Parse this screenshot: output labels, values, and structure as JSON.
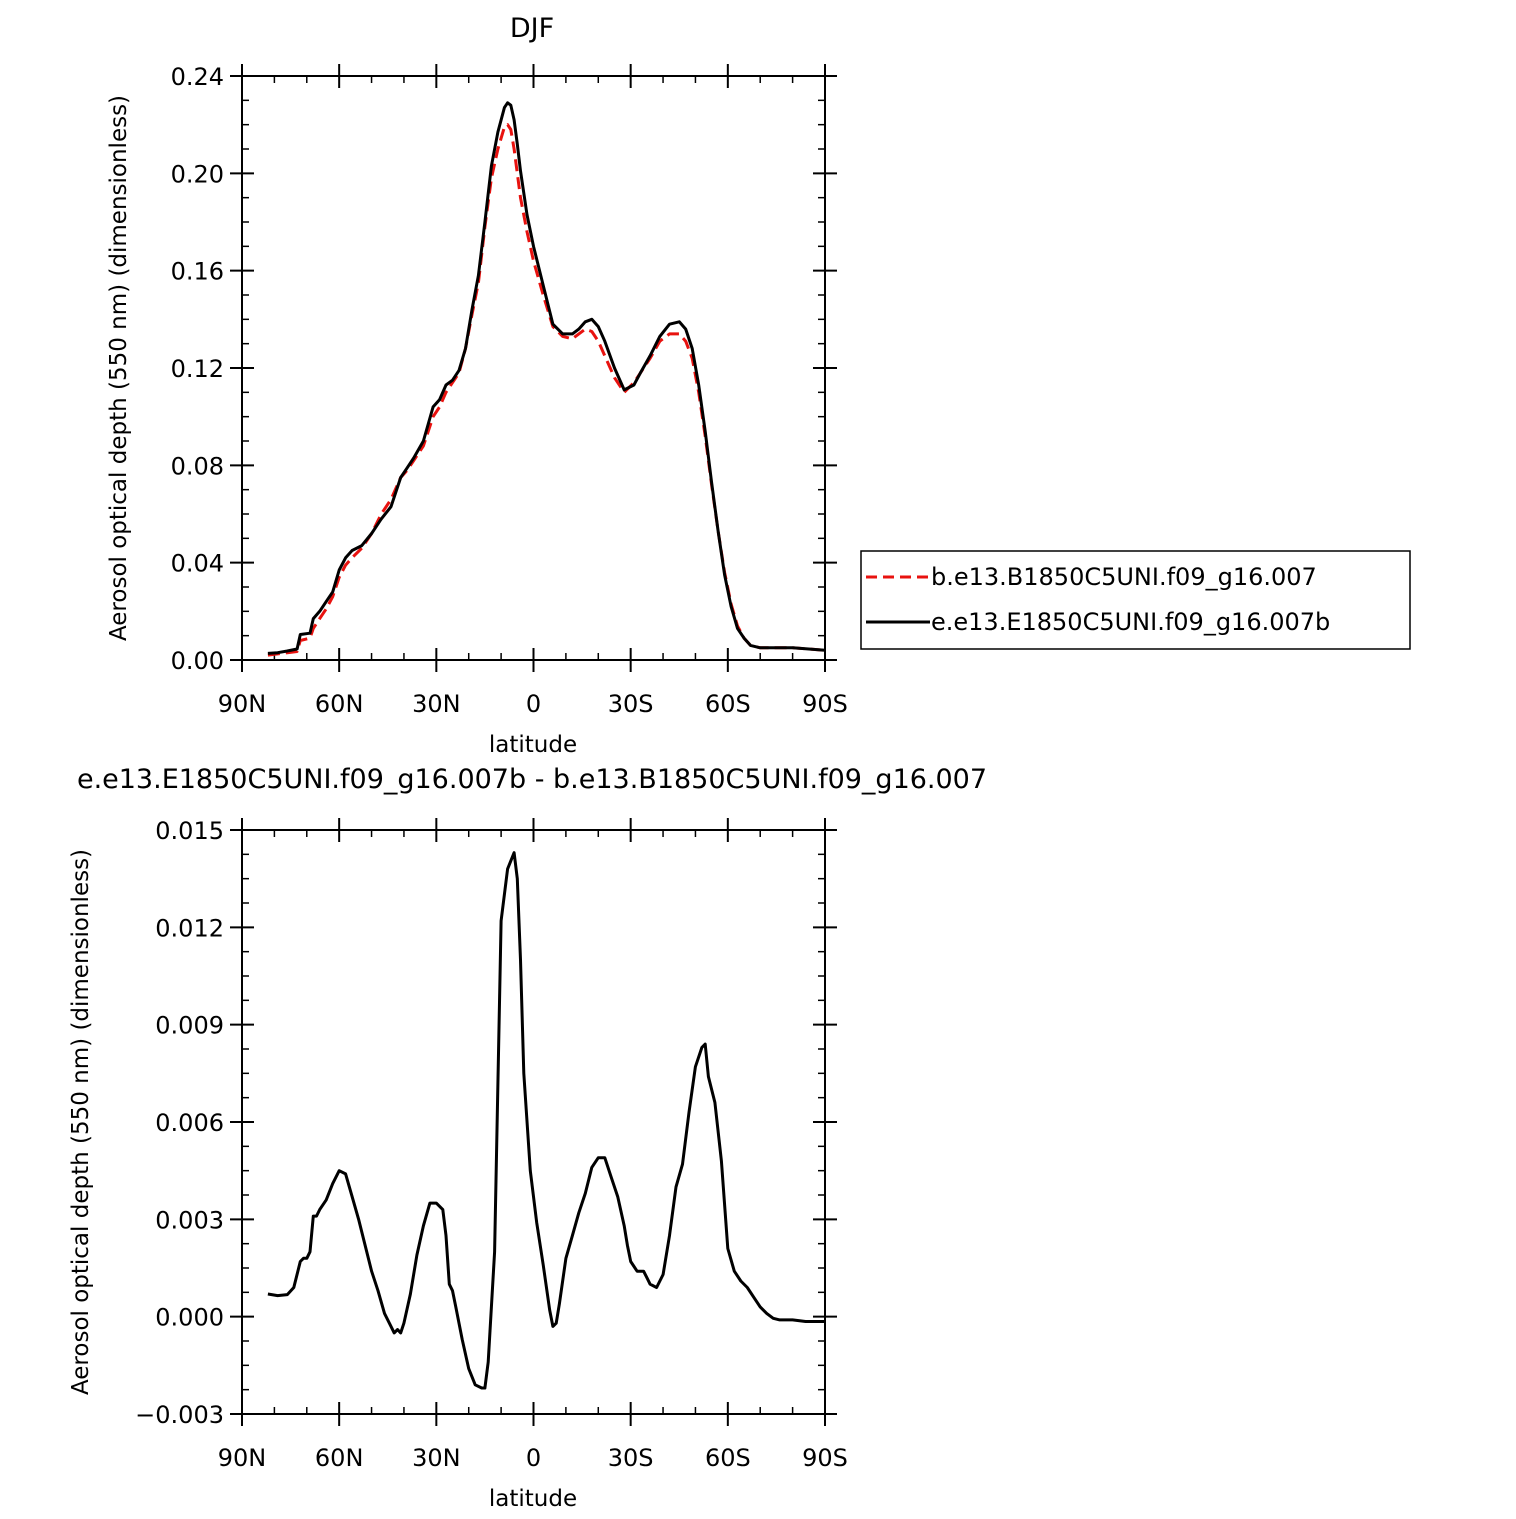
{
  "colors": {
    "series_a": "#e8120f",
    "series_b": "#000000",
    "axes": "#000000",
    "background": "#ffffff"
  },
  "legend": {
    "entries": [
      {
        "label": "b.e13.B1850C5UNI.f09_g16.007",
        "style": "dashed",
        "color": "#e8120f"
      },
      {
        "label": "e.e13.E1850C5UNI.f09_g16.007b",
        "style": "solid",
        "color": "#000000"
      }
    ]
  },
  "chart_data": [
    {
      "type": "line",
      "title": "DJF",
      "xlabel": "latitude",
      "ylabel": "Aerosol optical depth (550 nm) (dimensionless)",
      "xlim": [
        90,
        -90
      ],
      "ylim": [
        0,
        0.24
      ],
      "xticks": [
        90,
        60,
        30,
        0,
        -30,
        -60,
        -90
      ],
      "xtick_labels": [
        "90N",
        "60N",
        "30N",
        "0",
        "30S",
        "60S",
        "90S"
      ],
      "yticks": [
        0,
        0.04,
        0.08,
        0.12,
        0.16,
        0.2,
        0.24
      ],
      "ytick_labels": [
        "0.00",
        "0.04",
        "0.08",
        "0.12",
        "0.16",
        "0.20",
        "0.24"
      ],
      "grid": false,
      "legend_position": "right",
      "series": [
        {
          "name": "b.e13.B1850C5UNI.f09_g16.007",
          "color": "#e8120f",
          "style": "dashed",
          "x": [
            82,
            79,
            76,
            73,
            72,
            69,
            68,
            66,
            64,
            62,
            60,
            58,
            56,
            53,
            50,
            47,
            44,
            41,
            39,
            37,
            34,
            31,
            29,
            27,
            25,
            23,
            21,
            19,
            17,
            15,
            13,
            11,
            9,
            8,
            7,
            6,
            5,
            4,
            2,
            0,
            -3,
            -6,
            -9,
            -12,
            -14,
            -16,
            -18,
            -20,
            -22,
            -25,
            -28,
            -31,
            -33,
            -36,
            -39,
            -42,
            -45,
            -47,
            -49,
            -51,
            -53,
            -55,
            -57,
            -59,
            -61,
            -63,
            -65,
            -67,
            -70,
            -73,
            -76,
            -80,
            -85,
            -90
          ],
          "y": [
            0.002,
            0.0025,
            0.003,
            0.0035,
            0.008,
            0.009,
            0.013,
            0.017,
            0.021,
            0.026,
            0.034,
            0.039,
            0.042,
            0.046,
            0.052,
            0.06,
            0.066,
            0.075,
            0.078,
            0.082,
            0.088,
            0.1,
            0.104,
            0.11,
            0.114,
            0.118,
            0.128,
            0.142,
            0.155,
            0.178,
            0.198,
            0.21,
            0.219,
            0.22,
            0.218,
            0.21,
            0.2,
            0.19,
            0.176,
            0.164,
            0.15,
            0.137,
            0.133,
            0.132,
            0.134,
            0.136,
            0.135,
            0.131,
            0.125,
            0.116,
            0.11,
            0.114,
            0.118,
            0.124,
            0.131,
            0.134,
            0.134,
            0.131,
            0.124,
            0.11,
            0.092,
            0.072,
            0.053,
            0.036,
            0.023,
            0.014,
            0.009,
            0.006,
            0.005,
            0.005,
            0.005,
            0.005,
            0.0045,
            0.004
          ]
        },
        {
          "name": "e.e13.E1850C5UNI.f09_g16.007b",
          "color": "#000000",
          "style": "solid",
          "x": [
            82,
            79,
            76,
            73,
            72,
            69,
            68,
            66,
            64,
            62,
            60,
            58,
            56,
            53,
            50,
            47,
            44,
            41,
            39,
            37,
            34,
            31,
            29,
            27,
            25,
            23,
            21,
            19,
            17,
            15,
            13,
            11,
            9,
            8,
            7,
            6,
            5,
            4,
            2,
            0,
            -3,
            -6,
            -9,
            -12,
            -14,
            -16,
            -18,
            -20,
            -22,
            -25,
            -28,
            -31,
            -33,
            -36,
            -39,
            -42,
            -45,
            -47,
            -49,
            -51,
            -53,
            -55,
            -57,
            -59,
            -61,
            -63,
            -65,
            -67,
            -70,
            -73,
            -76,
            -80,
            -85,
            -90
          ],
          "y": [
            0.0027,
            0.003,
            0.0037,
            0.0045,
            0.0105,
            0.011,
            0.017,
            0.02,
            0.024,
            0.028,
            0.037,
            0.042,
            0.045,
            0.047,
            0.052,
            0.058,
            0.063,
            0.075,
            0.079,
            0.083,
            0.09,
            0.104,
            0.107,
            0.113,
            0.115,
            0.119,
            0.128,
            0.144,
            0.158,
            0.18,
            0.203,
            0.217,
            0.227,
            0.229,
            0.228,
            0.222,
            0.212,
            0.201,
            0.183,
            0.17,
            0.154,
            0.138,
            0.134,
            0.134,
            0.136,
            0.139,
            0.14,
            0.137,
            0.131,
            0.12,
            0.111,
            0.113,
            0.118,
            0.125,
            0.133,
            0.138,
            0.139,
            0.136,
            0.128,
            0.113,
            0.094,
            0.073,
            0.053,
            0.035,
            0.022,
            0.013,
            0.009,
            0.006,
            0.005,
            0.005,
            0.005,
            0.005,
            0.0045,
            0.004
          ]
        }
      ]
    },
    {
      "type": "line",
      "title": "e.e13.E1850C5UNI.f09_g16.007b - b.e13.B1850C5UNI.f09_g16.007",
      "xlabel": "latitude",
      "ylabel": "Aerosol optical depth (550 nm) (dimensionless)",
      "xlim": [
        90,
        -90
      ],
      "ylim": [
        -0.003,
        0.015
      ],
      "xticks": [
        90,
        60,
        30,
        0,
        -30,
        -60,
        -90
      ],
      "xtick_labels": [
        "90N",
        "60N",
        "30N",
        "0",
        "30S",
        "60S",
        "90S"
      ],
      "yticks": [
        -0.003,
        0,
        0.003,
        0.006,
        0.009,
        0.012,
        0.015
      ],
      "ytick_labels": [
        "−0.003",
        "0.000",
        "0.003",
        "0.006",
        "0.009",
        "0.012",
        "0.015"
      ],
      "grid": false,
      "series": [
        {
          "color": "#000000",
          "style": "solid",
          "x": [
            82,
            79,
            76,
            74,
            72,
            71,
            70,
            69,
            68,
            67,
            66,
            64,
            62,
            60,
            58,
            56,
            54,
            52,
            50,
            48,
            46,
            44,
            43,
            42,
            41,
            40,
            38,
            36,
            34,
            32,
            30,
            28,
            27,
            26,
            25,
            24,
            22,
            20,
            18,
            16,
            15,
            14,
            12,
            10,
            8,
            6,
            5,
            4,
            3,
            1,
            -1,
            -3,
            -5,
            -6,
            -7,
            -8,
            -10,
            -12,
            -14,
            -16,
            -18,
            -20,
            -22,
            -24,
            -26,
            -28,
            -29,
            -30,
            -32,
            -34,
            -35,
            -36,
            -38,
            -40,
            -42,
            -44,
            -46,
            -48,
            -50,
            -52,
            -53,
            -54,
            -56,
            -58,
            -60,
            -62,
            -64,
            -66,
            -68,
            -70,
            -72,
            -74,
            -76,
            -80,
            -84,
            -88,
            -90
          ],
          "y": [
            0.0007,
            0.00065,
            0.00068,
            0.0009,
            0.0017,
            0.0018,
            0.0018,
            0.002,
            0.0031,
            0.0031,
            0.0033,
            0.0036,
            0.0041,
            0.0045,
            0.0044,
            0.0037,
            0.003,
            0.0022,
            0.0014,
            0.0008,
            0.0001,
            -0.0003,
            -0.0005,
            -0.0004,
            -0.0005,
            -0.0002,
            0.0007,
            0.0019,
            0.0028,
            0.0035,
            0.0035,
            0.0033,
            0.0025,
            0.001,
            0.0008,
            0.0003,
            -0.0007,
            -0.0016,
            -0.0021,
            -0.0022,
            -0.0022,
            -0.0014,
            0.002,
            0.0122,
            0.0138,
            0.0143,
            0.0135,
            0.011,
            0.0075,
            0.0045,
            0.0029,
            0.0016,
            0.0002,
            -0.0003,
            -0.0002,
            0.0004,
            0.0018,
            0.0025,
            0.0032,
            0.0038,
            0.0046,
            0.0049,
            0.0049,
            0.0043,
            0.0037,
            0.0028,
            0.0022,
            0.0017,
            0.0014,
            0.0014,
            0.0012,
            0.001,
            0.0009,
            0.0013,
            0.0025,
            0.004,
            0.0047,
            0.0063,
            0.0077,
            0.0083,
            0.0084,
            0.0074,
            0.0066,
            0.0048,
            0.0021,
            0.0014,
            0.0011,
            0.0009,
            0.0006,
            0.0003,
            0.0001,
            -5e-05,
            -0.0001,
            -0.0001,
            -0.00015,
            -0.00015,
            -0.00015
          ]
        }
      ]
    }
  ]
}
